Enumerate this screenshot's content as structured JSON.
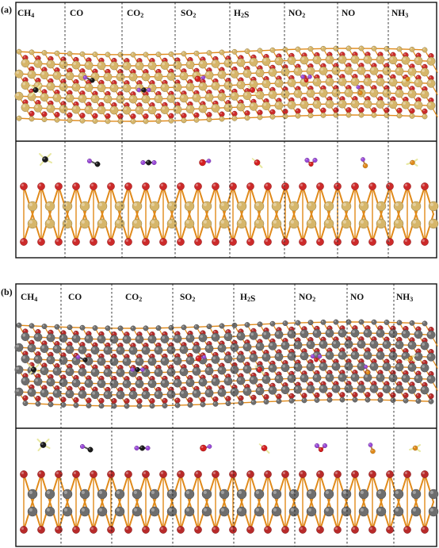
{
  "panels": [
    {
      "id": "a",
      "label": "(a)",
      "molecules": [
        "CH4",
        "CO",
        "CO2",
        "SO2",
        "H2S",
        "NO2",
        "NO",
        "NH3"
      ],
      "substrate": {
        "metal_color": "#d6b66a",
        "anion_color": "#cc2a2a",
        "bond_color": "#e08a1a"
      }
    },
    {
      "id": "b",
      "label": "(b)",
      "molecules": [
        "CH4",
        "CO",
        "CO2",
        "SO2",
        "H2S",
        "NO2",
        "NO",
        "NH3"
      ],
      "substrate": {
        "metal_color": "#6e6e6e",
        "anion_color": "#b82a2a",
        "bond_color": "#e08a1a"
      }
    }
  ],
  "adsorbate_colors": {
    "C": "#1a1a1a",
    "O": "#d42020",
    "N": "#9a4ad8",
    "S": "#e8b820",
    "H": "#e8e8a0"
  }
}
